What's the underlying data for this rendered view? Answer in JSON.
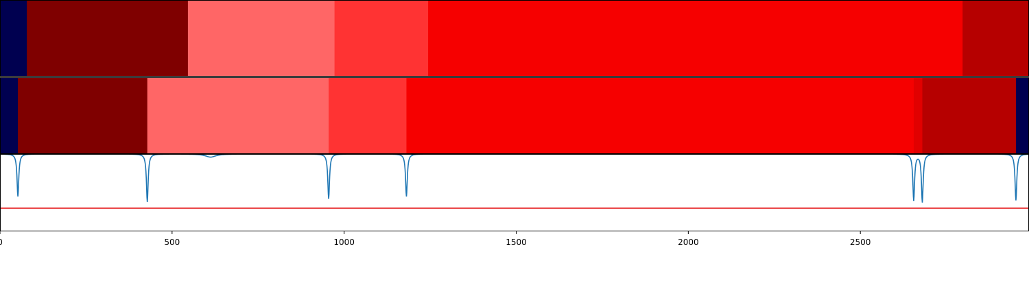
{
  "chart_data": {
    "type": "heatmap",
    "title": "",
    "xlabel": "",
    "ylabel": "",
    "xlim": [
      0,
      2990
    ],
    "x_ticks": [
      0,
      500,
      1000,
      1500,
      2000,
      2500
    ],
    "x_tick_labels": [
      "0",
      "500",
      "1000",
      "1500",
      "2000",
      "2500"
    ],
    "grid": false,
    "rows": [
      {
        "segments": [
          {
            "start": 0,
            "end": 78,
            "color": "#000050"
          },
          {
            "start": 78,
            "end": 546,
            "color": "#7f0000"
          },
          {
            "start": 546,
            "end": 972,
            "color": "#ff6666"
          },
          {
            "start": 972,
            "end": 1244,
            "color": "#ff3333"
          },
          {
            "start": 1244,
            "end": 2797,
            "color": "#f60000"
          },
          {
            "start": 2797,
            "end": 2990,
            "color": "#b60000"
          }
        ]
      },
      {
        "segments": [
          {
            "start": 0,
            "end": 52,
            "color": "#000050"
          },
          {
            "start": 52,
            "end": 428,
            "color": "#7f0000"
          },
          {
            "start": 428,
            "end": 955,
            "color": "#ff6666"
          },
          {
            "start": 955,
            "end": 1181,
            "color": "#ff3333"
          },
          {
            "start": 1181,
            "end": 2655,
            "color": "#f60000"
          },
          {
            "start": 2655,
            "end": 2680,
            "color": "#e10000"
          },
          {
            "start": 2680,
            "end": 2952,
            "color": "#b60000"
          },
          {
            "start": 2952,
            "end": 2990,
            "color": "#000050"
          }
        ]
      }
    ],
    "line_panel": {
      "ylim": [
        0,
        1
      ],
      "threshold": 0.3,
      "baseline": 1.0,
      "series": [
        {
          "color": "#1f77b4",
          "dips": [
            {
              "x": 52,
              "depth": 0.55,
              "width": 3
            },
            {
              "x": 428,
              "depth": 0.62,
              "width": 3
            },
            {
              "x": 612,
              "depth": 0.04,
              "width": 18
            },
            {
              "x": 955,
              "depth": 0.58,
              "width": 3
            },
            {
              "x": 1181,
              "depth": 0.55,
              "width": 3
            },
            {
              "x": 2655,
              "depth": 0.6,
              "width": 3
            },
            {
              "x": 2680,
              "depth": 0.62,
              "width": 3
            },
            {
              "x": 2952,
              "depth": 0.6,
              "width": 3
            }
          ]
        }
      ],
      "threshold_color": "#e41a1c"
    }
  }
}
